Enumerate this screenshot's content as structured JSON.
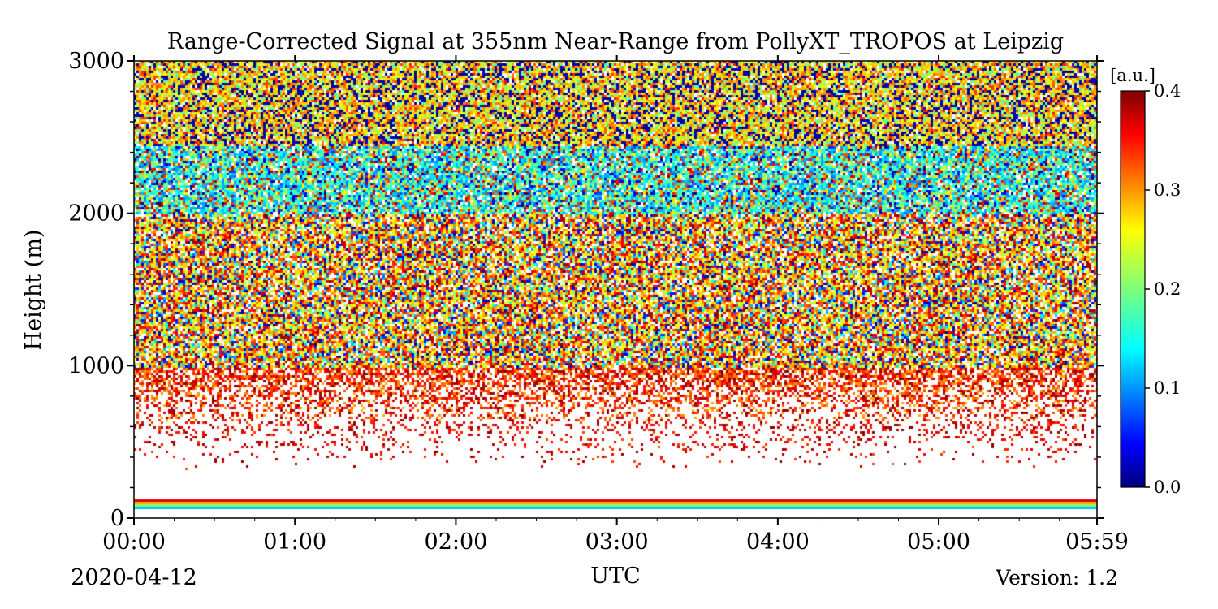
{
  "chart_data": {
    "type": "heatmap",
    "title": "Range-Corrected Signal at 355nm Near-Range from PollyXT_TROPOS at Leipzig",
    "xlabel": "UTC",
    "ylabel": "Height (m)",
    "date_label": "2020-04-12",
    "version_label": "Version: 1.2",
    "x_range_minutes": [
      0,
      359
    ],
    "x_ticks": [
      {
        "label": "00:00",
        "minutes": 0
      },
      {
        "label": "01:00",
        "minutes": 60
      },
      {
        "label": "02:00",
        "minutes": 120
      },
      {
        "label": "03:00",
        "minutes": 180
      },
      {
        "label": "04:00",
        "minutes": 240
      },
      {
        "label": "05:00",
        "minutes": 300
      },
      {
        "label": "05:59",
        "minutes": 359
      }
    ],
    "ylim": [
      0,
      3000
    ],
    "y_ticks": [
      {
        "label": "0",
        "value": 0
      },
      {
        "label": "1000",
        "value": 1000
      },
      {
        "label": "2000",
        "value": 2000
      },
      {
        "label": "3000",
        "value": 3000
      }
    ],
    "y_minor_step": 200,
    "colorbar": {
      "label": "[a.u.]",
      "colormap": "jet",
      "range": [
        0.0,
        0.4
      ],
      "ticks": [
        {
          "label": "0.0",
          "value": 0.0
        },
        {
          "label": "0.1",
          "value": 0.1
        },
        {
          "label": "0.2",
          "value": 0.2
        },
        {
          "label": "0.3",
          "value": 0.3
        },
        {
          "label": "0.4",
          "value": 0.4
        }
      ]
    },
    "layers": [
      {
        "height_range": [
          70,
          130
        ],
        "description": "strong low band, colour gradient 0.1-0.4"
      },
      {
        "height_range": [
          130,
          450
        ],
        "description": "no signal (blank)"
      },
      {
        "height_range": [
          450,
          1000
        ],
        "description": "sparse, saturated 0.35-0.4"
      },
      {
        "height_range": [
          1000,
          2000
        ],
        "description": "mixed 0.1-0.4, orange/yellow dominant"
      },
      {
        "height_range": [
          2000,
          2450
        ],
        "description": "cyan/green noisy layer 0.1-0.2"
      },
      {
        "height_range": [
          2450,
          3000
        ],
        "description": "noisy yellow/green with dark blue 0.0-0.3"
      }
    ]
  }
}
